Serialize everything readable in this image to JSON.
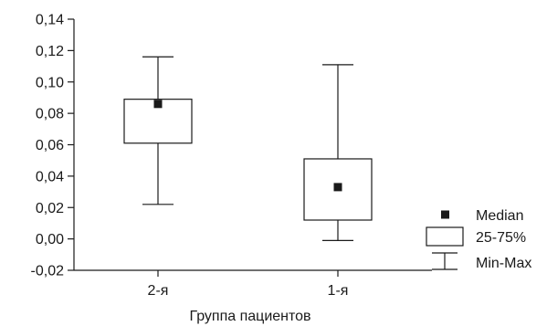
{
  "chart_data": {
    "type": "boxplot",
    "xlabel": "Группа пациентов",
    "ylabel": "",
    "ylim": [
      -0.02,
      0.14
    ],
    "yticks": [
      "-0,02",
      "0,00",
      "0,02",
      "0,04",
      "0,06",
      "0,08",
      "0,10",
      "0,12",
      "0,14"
    ],
    "ytick_values": [
      -0.02,
      0.0,
      0.02,
      0.04,
      0.06,
      0.08,
      0.1,
      0.12,
      0.14
    ],
    "categories": [
      "2-я",
      "1-я"
    ],
    "boxes": [
      {
        "category": "2-я",
        "min": 0.022,
        "q1": 0.061,
        "median": 0.086,
        "q3": 0.089,
        "max": 0.116
      },
      {
        "category": "1-я",
        "min": -0.001,
        "q1": 0.012,
        "median": 0.033,
        "q3": 0.051,
        "max": 0.111
      }
    ],
    "legend": {
      "placement": "bottom-right",
      "items": [
        {
          "symbol": "median-marker",
          "label": "Median"
        },
        {
          "symbol": "box",
          "label": "25-75%"
        },
        {
          "symbol": "whisker",
          "label": "Min-Max"
        }
      ]
    },
    "grid": false
  }
}
